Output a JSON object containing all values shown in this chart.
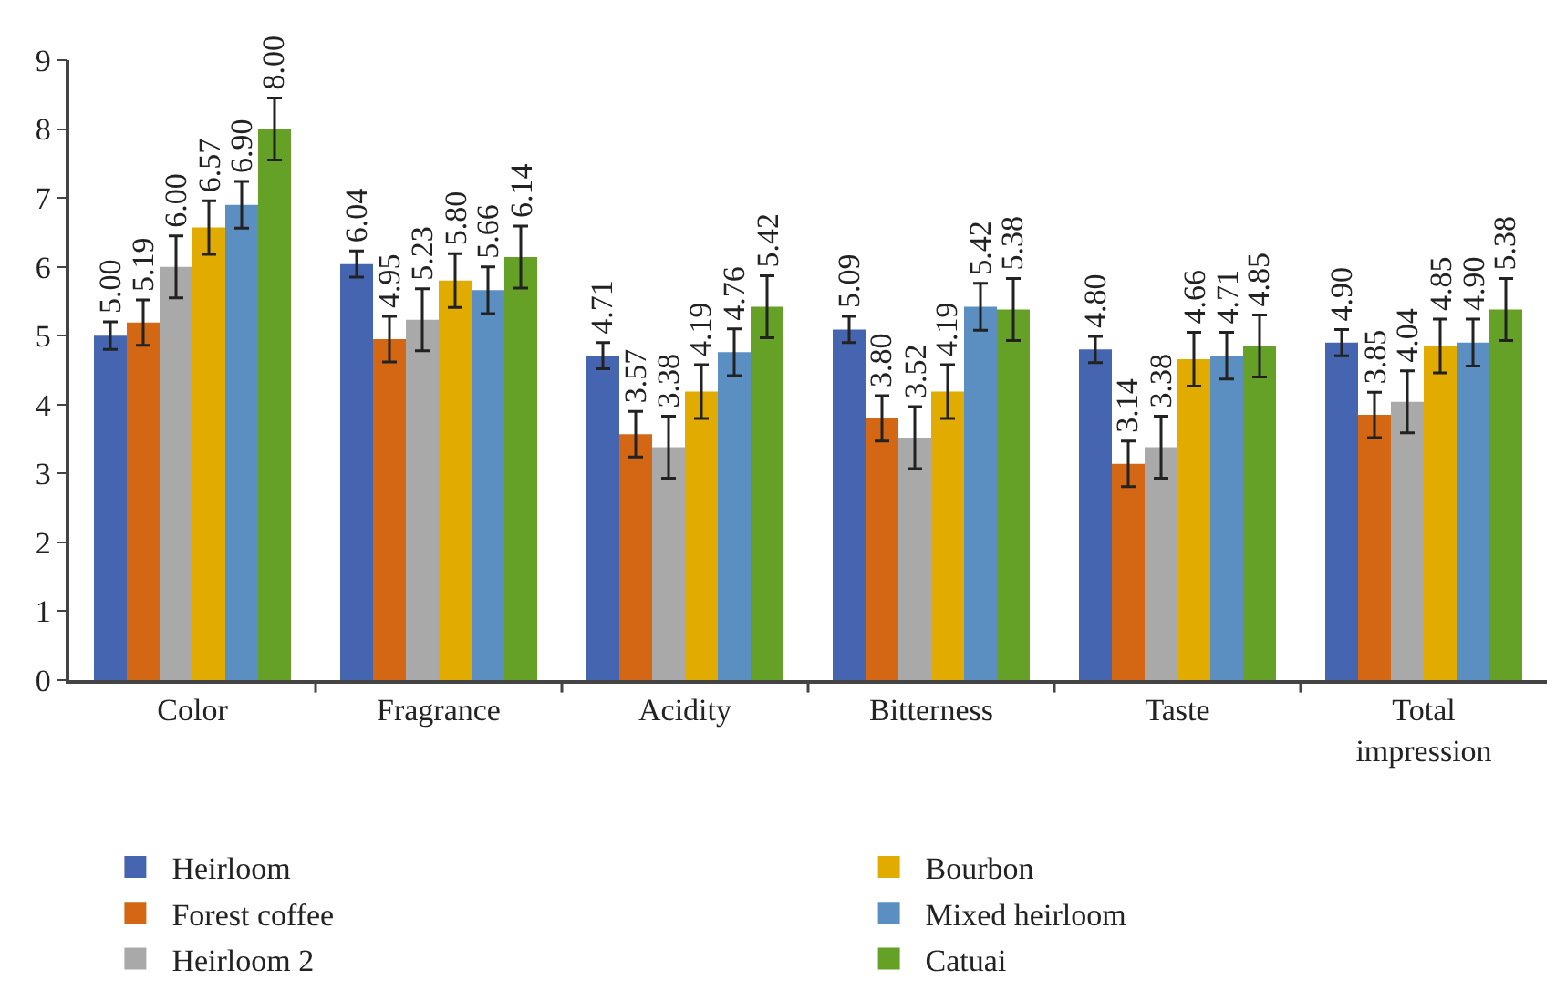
{
  "chart_data": {
    "type": "bar",
    "categories": [
      "Color",
      "Fragrance",
      "Acidity",
      "Bitterness",
      "Taste",
      "Total impression"
    ],
    "series": [
      {
        "name": "Heirloom",
        "color": "#4665b0",
        "values": [
          5.0,
          6.04,
          4.71,
          5.09,
          4.8,
          4.9
        ],
        "value_labels": [
          "5.00",
          "6.04",
          "4.71",
          "5.09",
          "4.80",
          "4.90"
        ],
        "errors": [
          0.2,
          0.19,
          0.19,
          0.19,
          0.19,
          0.19
        ]
      },
      {
        "name": "Forest coffee",
        "color": "#d46713",
        "values": [
          5.19,
          4.95,
          3.57,
          3.8,
          3.14,
          3.85
        ],
        "value_labels": [
          "5.19",
          "4.95",
          "3.57",
          "3.80",
          "3.14",
          "3.85"
        ],
        "errors": [
          0.33,
          0.33,
          0.33,
          0.33,
          0.33,
          0.33
        ]
      },
      {
        "name": "Heirloom 2",
        "color": "#a9a9a9",
        "values": [
          6.0,
          5.23,
          3.38,
          3.52,
          3.38,
          4.04
        ],
        "value_labels": [
          "6.00",
          "5.23",
          "3.38",
          "3.52",
          "3.38",
          "4.04"
        ],
        "errors": [
          0.45,
          0.45,
          0.45,
          0.45,
          0.45,
          0.45
        ]
      },
      {
        "name": "Bourbon",
        "color": "#e2ab00",
        "values": [
          6.57,
          5.8,
          4.19,
          4.19,
          4.66,
          4.85
        ],
        "value_labels": [
          "6.57",
          "5.80",
          "4.19",
          "4.19",
          "4.66",
          "4.85"
        ],
        "errors": [
          0.39,
          0.39,
          0.39,
          0.39,
          0.39,
          0.39
        ]
      },
      {
        "name": "Mixed heirloom",
        "color": "#5b8fc2",
        "values": [
          6.9,
          5.66,
          4.76,
          5.42,
          4.71,
          4.9
        ],
        "value_labels": [
          "6.90",
          "5.66",
          "4.76",
          "5.42",
          "4.71",
          "4.90"
        ],
        "errors": [
          0.34,
          0.34,
          0.34,
          0.34,
          0.34,
          0.34
        ]
      },
      {
        "name": "Catuai",
        "color": "#65a027",
        "values": [
          8.0,
          6.14,
          5.42,
          5.38,
          4.85,
          5.38
        ],
        "value_labels": [
          "8.00",
          "6.14",
          "5.42",
          "5.38",
          "4.85",
          "5.38"
        ],
        "errors": [
          0.45,
          0.45,
          0.45,
          0.45,
          0.45,
          0.45
        ]
      }
    ],
    "ylim": [
      0,
      9
    ],
    "yticks": [
      0,
      1,
      2,
      3,
      4,
      5,
      6,
      7,
      8,
      9
    ],
    "legend": "bottom"
  }
}
